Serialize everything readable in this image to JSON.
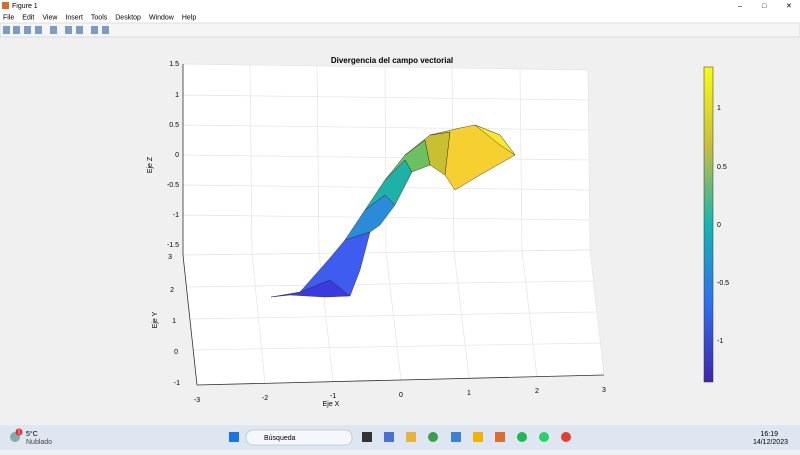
{
  "window": {
    "title": "Figure 1",
    "menu": [
      "File",
      "Edit",
      "View",
      "Insert",
      "Tools",
      "Desktop",
      "Window",
      "Help"
    ]
  },
  "figure": {
    "title": "Divergencia del campo vectorial",
    "zlabel": "Eje Z",
    "ylabel": "Eje Y",
    "xlabel": "Eje X",
    "zticks": [
      1.5,
      1,
      0.5,
      0,
      -0.5,
      -1,
      -1.5
    ],
    "yticks": [
      3,
      2,
      1,
      0,
      -1
    ],
    "xticks": [
      -3,
      -2,
      -1,
      0,
      1,
      2,
      3
    ],
    "colorbar_ticks": [
      1,
      0.5,
      0,
      -0.5,
      -1
    ]
  },
  "taskbar": {
    "weather_temp": "5°C",
    "weather_desc": "Nublado",
    "search": "Búsqueda",
    "time": "16:19",
    "date": "14/12/2023",
    "badge": "1"
  }
}
